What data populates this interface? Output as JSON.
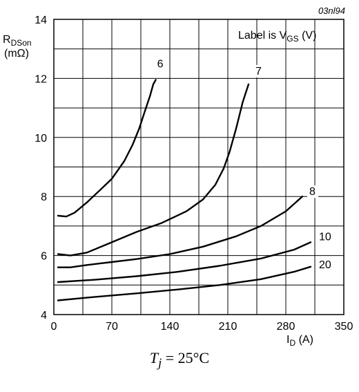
{
  "chart_data": {
    "type": "line",
    "code": "03nl94",
    "ylabel_main": "R",
    "ylabel_sub": "DSon",
    "ylabel_unit": "(mΩ)",
    "xlabel_main": "I",
    "xlabel_sub": "D",
    "xlabel_unit": "(A)",
    "legend_main": "Label is V",
    "legend_sub": "GS",
    "legend_unit": "(V)",
    "xlim": [
      0,
      350
    ],
    "ylim": [
      4,
      14
    ],
    "x_ticks": [
      0,
      70,
      140,
      210,
      280,
      350
    ],
    "x_tick_labels": [
      "0",
      "70",
      "140",
      "210",
      "280",
      "350"
    ],
    "y_ticks": [
      4,
      6,
      8,
      10,
      12,
      14
    ],
    "y_tick_labels": [
      "4",
      "6",
      "8",
      "10",
      "12",
      "14"
    ],
    "grid": true,
    "series": [
      {
        "name": "6",
        "x": [
          5,
          15,
          25,
          40,
          55,
          70,
          85,
          95,
          103,
          110,
          116,
          120,
          123
        ],
        "y": [
          7.35,
          7.32,
          7.45,
          7.8,
          8.2,
          8.6,
          9.2,
          9.75,
          10.3,
          10.9,
          11.4,
          11.8,
          11.95
        ]
      },
      {
        "name": "7",
        "x": [
          5,
          20,
          40,
          70,
          100,
          130,
          160,
          180,
          195,
          205,
          212,
          220,
          228,
          235
        ],
        "y": [
          6.05,
          6.0,
          6.1,
          6.45,
          6.8,
          7.1,
          7.5,
          7.9,
          8.4,
          8.95,
          9.5,
          10.3,
          11.2,
          11.8
        ]
      },
      {
        "name": "8",
        "x": [
          5,
          20,
          40,
          70,
          100,
          140,
          180,
          220,
          250,
          280,
          300
        ],
        "y": [
          5.6,
          5.6,
          5.68,
          5.78,
          5.88,
          6.05,
          6.3,
          6.65,
          7.0,
          7.5,
          8.0
        ]
      },
      {
        "name": "10",
        "x": [
          5,
          50,
          100,
          150,
          200,
          250,
          290,
          310
        ],
        "y": [
          5.1,
          5.18,
          5.3,
          5.45,
          5.65,
          5.9,
          6.2,
          6.45
        ]
      },
      {
        "name": "20",
        "x": [
          5,
          50,
          100,
          150,
          200,
          250,
          290,
          310
        ],
        "y": [
          4.48,
          4.6,
          4.72,
          4.85,
          5.0,
          5.2,
          5.45,
          5.62
        ]
      }
    ]
  },
  "caption": {
    "main": "T",
    "sub": "j",
    "rest": "= 25°C"
  }
}
